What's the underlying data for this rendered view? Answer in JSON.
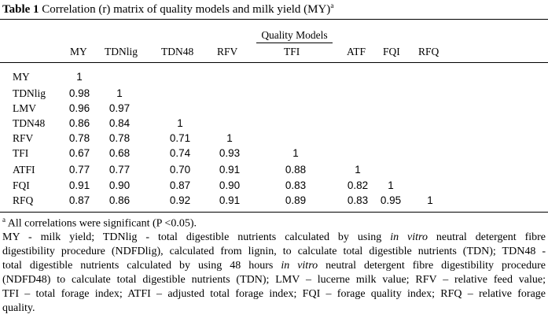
{
  "title": {
    "label": "Table 1",
    "text": "Correlation (r) matrix of quality models and milk yield (MY)",
    "sup": "a"
  },
  "group_header": "Quality Models",
  "columns": [
    "MY",
    "TDNlig",
    "TDN48",
    "RFV",
    "TFI",
    "ATF",
    "FQI",
    "RFQ"
  ],
  "rows": [
    {
      "label": "MY",
      "values": [
        "1"
      ]
    },
    {
      "label": "TDNlig",
      "values": [
        "0.98",
        "1"
      ]
    },
    {
      "label": "LMV",
      "values": [
        "0.96",
        "0.97"
      ]
    },
    {
      "label": "TDN48",
      "values": [
        "0.86",
        "0.84",
        "1"
      ]
    },
    {
      "label": "RFV",
      "values": [
        "0.78",
        "0.78",
        "0.71",
        "1"
      ]
    },
    {
      "label": "TFI",
      "values": [
        "0.67",
        "0.68",
        "0.74",
        "0.93",
        "1"
      ]
    },
    {
      "label": "ATFI",
      "values": [
        "0.77",
        "0.77",
        "0.70",
        "0.91",
        "0.88",
        "1"
      ]
    },
    {
      "label": "FQI",
      "values": [
        "0.91",
        "0.90",
        "0.87",
        "0.90",
        "0.83",
        "0.82",
        "1"
      ]
    },
    {
      "label": "RFQ",
      "values": [
        "0.87",
        "0.86",
        "0.92",
        "0.91",
        "0.89",
        "0.83",
        "0.95",
        "1"
      ]
    }
  ],
  "footnote": {
    "sup": "a",
    "text": "All correlations were significant (P <0.05)."
  },
  "abbreviations": [
    "MY - milk yield; TDNlig - total digestible nutrients calculated by using in vitro neutral detergent fibre",
    "digestibility procedure (NDFDlig), calculated from lignin, to calculate total digestible nutrients (TDN); TDN48 -",
    "total digestible nutrients calculated by using 48 hours in vitro neutral detergent fibre digestibility procedure",
    "(NDFD48) to calculate total digestible nutrients (TDN); LMV – lucerne milk value; RFV – relative feed value;",
    "TFI – total forage index; ATFI – adjusted total forage index; FQI – forage quality index; RFQ – relative forage",
    "quality."
  ]
}
